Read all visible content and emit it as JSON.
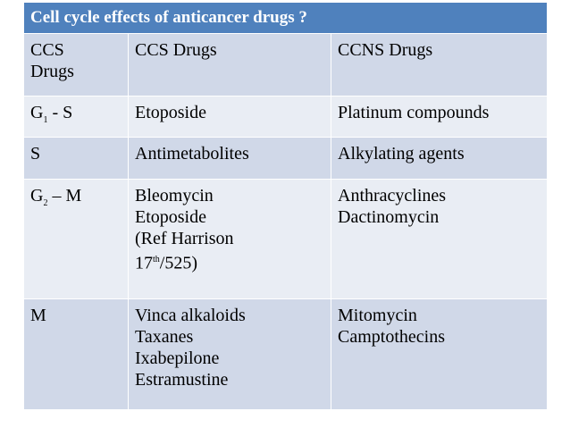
{
  "header": {
    "title": "Cell cycle effects of anticancer drugs ?"
  },
  "table": {
    "rows": [
      [
        [
          "CCS",
          "Drugs"
        ],
        [
          "CCS Drugs"
        ],
        [
          "CCNS Drugs"
        ]
      ],
      [
        [
          {
            "base": "G",
            "sub": "1",
            "rest": " - S"
          }
        ],
        [
          "Etoposide"
        ],
        [
          "Platinum compounds"
        ]
      ],
      [
        [
          "S"
        ],
        [
          "Antimetabolites"
        ],
        [
          "Alkylating agents"
        ]
      ],
      [
        [
          {
            "base": "G",
            "sub": "2",
            "rest": " – M"
          }
        ],
        [
          "Bleomycin",
          "Etoposide",
          "(Ref Harrison",
          {
            "base": "17",
            "sup": "th",
            "rest": "/525)"
          }
        ],
        [
          "Anthracyclines",
          "Dactinomycin"
        ]
      ],
      [
        [
          "M"
        ],
        [
          "Vinca alkaloids",
          "Taxanes",
          "Ixabepilone",
          "Estramustine"
        ],
        [
          "Mitomycin",
          "Camptothecins"
        ]
      ]
    ]
  }
}
